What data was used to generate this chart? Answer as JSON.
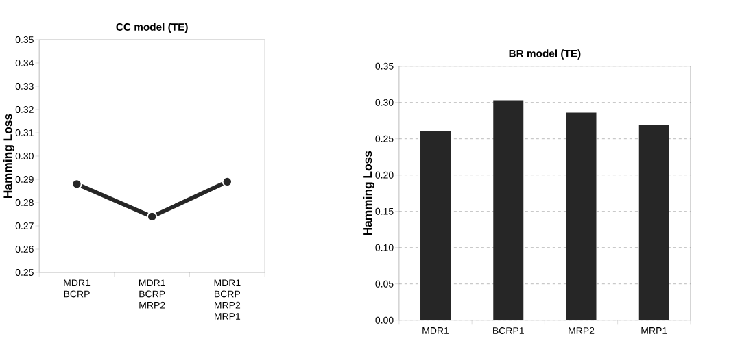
{
  "chart_data": [
    {
      "type": "line",
      "title": "CC model (TE)",
      "ylabel": "Hamming Loss",
      "categories": [
        "MDR1 BCRP",
        "MDR1 BCRP MRP2",
        "MDR1 BCRP MRP2 MRP1"
      ],
      "values": [
        0.288,
        0.274,
        0.289
      ],
      "color": "#262626",
      "marker": "circle",
      "ylim": [
        0.25,
        0.35
      ],
      "yticks": [
        0.25,
        0.26,
        0.27,
        0.28,
        0.29,
        {
          "value": 0.3,
          "label": "0.30"
        },
        0.31,
        0.32,
        0.33,
        0.34,
        0.35
      ]
    },
    {
      "type": "bar",
      "title": "BR model (TE)",
      "ylabel": "Hamming Loss",
      "categories": [
        "MDR1",
        "BCRP1",
        "MRP2",
        "MRP1"
      ],
      "values": [
        0.261,
        0.303,
        0.286,
        0.269
      ],
      "color": "#262626",
      "grid": "y",
      "ylim": [
        0,
        0.35
      ],
      "yticks": [
        {
          "value": 0,
          "label": "0.00"
        },
        0.05,
        {
          "value": 0.1,
          "label": "0.10"
        },
        0.15,
        {
          "value": 0.2,
          "label": "0.20"
        },
        0.25,
        {
          "value": 0.3,
          "label": "0.30"
        },
        0.35
      ]
    }
  ]
}
